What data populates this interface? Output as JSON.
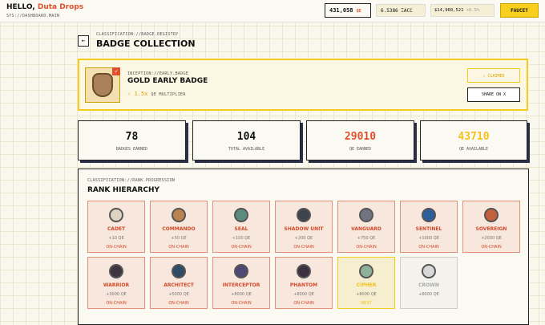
{
  "header": {
    "greeting": "HELLO,",
    "user": "Duta Drops",
    "path": "SYS://DASHBOARD.MAIN",
    "qe_balance": "431,058",
    "qe_unit": "QE",
    "token_balance": "6.5386 ΞACC",
    "usd_balance": "$14,960,521",
    "usd_change": "+6.5%",
    "faucet": "FAUCET"
  },
  "page": {
    "breadcrumb": "CLASSIFICATION://BADGE.REGISTRY",
    "title": "BADGE COLLECTION"
  },
  "featured": {
    "tag": "INCEPTION://EARLY.BADGE",
    "name": "GOLD EARLY BADGE",
    "multiplier": "1.5x",
    "multiplier_label": "QE MULTIPLIER",
    "claimed": "✓ CLAIMED",
    "share": "SHARE ON X"
  },
  "stats": [
    {
      "value": "78",
      "label": "BADGES EARNED"
    },
    {
      "value": "104",
      "label": "TOTAL AVAILABLE"
    },
    {
      "value": "29010",
      "label": "QE EARNED"
    },
    {
      "value": "43710",
      "label": "QE AVAILABLE"
    }
  ],
  "ranks": {
    "tag": "CLASSIFICATION://RANK.PROGRESSION",
    "title": "RANK HIERARCHY",
    "items": [
      {
        "name": "CADET",
        "reward": "+10 QE",
        "status": "ON-CHAIN"
      },
      {
        "name": "COMMANDO",
        "reward": "+50 QE",
        "status": "ON-CHAIN"
      },
      {
        "name": "SEAL",
        "reward": "+100 QE",
        "status": "ON-CHAIN"
      },
      {
        "name": "SHADOW UNIT",
        "reward": "+200 QE",
        "status": "ON-CHAIN"
      },
      {
        "name": "VANGUARD",
        "reward": "+750 QE",
        "status": "ON-CHAIN"
      },
      {
        "name": "SENTINEL",
        "reward": "+1000 QE",
        "status": "ON-CHAIN"
      },
      {
        "name": "SOVEREIGN",
        "reward": "+2000 QE",
        "status": "ON-CHAIN"
      },
      {
        "name": "WARRIOR",
        "reward": "+3000 QE",
        "status": "ON-CHAIN"
      },
      {
        "name": "ARCHITECT",
        "reward": "+5000 QE",
        "status": "ON-CHAIN"
      },
      {
        "name": "INTERCEPTOR",
        "reward": "+8000 QE",
        "status": "ON-CHAIN"
      },
      {
        "name": "PHANTOM",
        "reward": "+8000 QE",
        "status": "ON-CHAIN"
      },
      {
        "name": "CIPHER",
        "reward": "+8000 QE",
        "status": "NEXT"
      },
      {
        "name": "CROWN",
        "reward": "+8000 QE"
      }
    ]
  }
}
